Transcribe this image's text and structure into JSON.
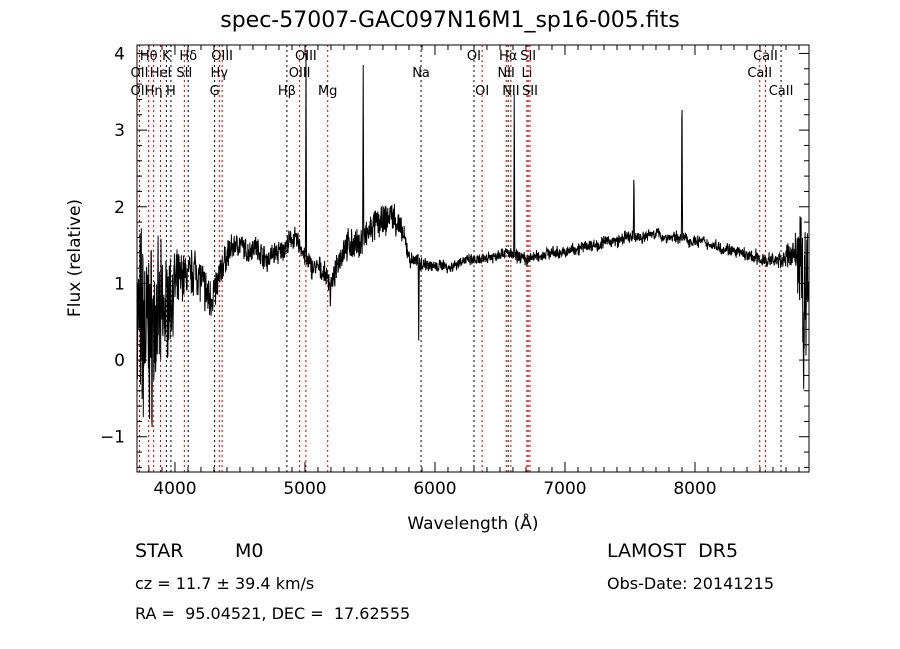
{
  "chart_data": {
    "type": "line",
    "title": "spec-57007-GAC097N16M1_sp16-005.fits",
    "xlabel": "Wavelength (Å)",
    "ylabel": "Flux (relative)",
    "xlim": [
      3708,
      8877
    ],
    "ylim": [
      -1.46,
      4.11
    ],
    "xticks": [
      4000,
      5000,
      6000,
      7000,
      8000
    ],
    "yticks": [
      -1,
      0,
      1,
      2,
      3,
      4
    ],
    "grid": false,
    "continuum": {
      "x": [
        3710,
        3760,
        3810,
        3860,
        3910,
        3960,
        4010,
        4060,
        4110,
        4160,
        4210,
        4260,
        4310,
        4360,
        4410,
        4460,
        4510,
        4560,
        4610,
        4660,
        4710,
        4760,
        4810,
        4860,
        4910,
        4960,
        5010,
        5060,
        5110,
        5160,
        5210,
        5260,
        5310,
        5360,
        5410,
        5460,
        5510,
        5560,
        5610,
        5660,
        5710,
        5760,
        5810,
        5860,
        5910,
        5960,
        6010,
        6060,
        6110,
        6160,
        6210,
        6260,
        6310,
        6360,
        6410,
        6460,
        6510,
        6560,
        6610,
        6660,
        6710,
        6760,
        6810,
        6860,
        6910,
        6960,
        7010,
        7060,
        7110,
        7160,
        7210,
        7260,
        7310,
        7360,
        7410,
        7460,
        7510,
        7560,
        7610,
        7660,
        7710,
        7760,
        7810,
        7860,
        7910,
        7960,
        8010,
        8060,
        8110,
        8160,
        8210,
        8260,
        8310,
        8360,
        8410,
        8460,
        8510,
        8560,
        8610,
        8660,
        8710,
        8760,
        8810,
        8850,
        8870
      ],
      "y": [
        0.5,
        0.4,
        0.3,
        0.5,
        0.6,
        0.8,
        1.0,
        1.1,
        1.1,
        1.2,
        1.0,
        0.8,
        0.9,
        1.2,
        1.4,
        1.5,
        1.5,
        1.4,
        1.5,
        1.4,
        1.3,
        1.4,
        1.4,
        1.5,
        1.6,
        1.5,
        1.3,
        1.2,
        1.2,
        1.1,
        1.0,
        1.3,
        1.5,
        1.5,
        1.5,
        1.6,
        1.7,
        1.8,
        1.8,
        1.9,
        1.8,
        1.6,
        1.3,
        1.3,
        1.25,
        1.25,
        1.2,
        1.25,
        1.2,
        1.25,
        1.3,
        1.3,
        1.3,
        1.3,
        1.35,
        1.35,
        1.4,
        1.4,
        1.35,
        1.35,
        1.3,
        1.35,
        1.35,
        1.4,
        1.4,
        1.4,
        1.4,
        1.45,
        1.45,
        1.5,
        1.5,
        1.5,
        1.55,
        1.55,
        1.55,
        1.6,
        1.6,
        1.6,
        1.6,
        1.65,
        1.65,
        1.6,
        1.6,
        1.6,
        1.6,
        1.55,
        1.55,
        1.55,
        1.5,
        1.5,
        1.45,
        1.45,
        1.4,
        1.4,
        1.35,
        1.35,
        1.3,
        1.3,
        1.3,
        1.3,
        1.35,
        1.4,
        1.3,
        1.0,
        0.9
      ],
      "noise_amplitude": [
        1.3,
        1.3,
        1.2,
        1.0,
        0.8,
        0.6,
        0.4,
        0.3,
        0.3,
        0.3,
        0.3,
        0.3,
        0.25,
        0.2,
        0.2,
        0.15,
        0.15,
        0.15,
        0.15,
        0.15,
        0.15,
        0.15,
        0.15,
        0.15,
        0.15,
        0.15,
        0.15,
        0.15,
        0.15,
        0.15,
        0.15,
        0.15,
        0.2,
        0.2,
        0.2,
        0.2,
        0.2,
        0.2,
        0.2,
        0.2,
        0.2,
        0.15,
        0.1,
        0.1,
        0.1,
        0.08,
        0.08,
        0.08,
        0.08,
        0.08,
        0.08,
        0.08,
        0.08,
        0.08,
        0.08,
        0.08,
        0.08,
        0.08,
        0.08,
        0.08,
        0.08,
        0.08,
        0.08,
        0.08,
        0.08,
        0.08,
        0.08,
        0.08,
        0.08,
        0.08,
        0.08,
        0.08,
        0.08,
        0.08,
        0.08,
        0.08,
        0.08,
        0.08,
        0.08,
        0.08,
        0.08,
        0.08,
        0.08,
        0.08,
        0.08,
        0.08,
        0.08,
        0.08,
        0.08,
        0.08,
        0.08,
        0.08,
        0.08,
        0.08,
        0.08,
        0.1,
        0.1,
        0.1,
        0.1,
        0.1,
        0.15,
        0.2,
        0.6,
        1.0,
        1.0
      ]
    },
    "features": [
      {
        "x": 5008,
        "y": 4.0,
        "type": "emission"
      },
      {
        "x": 5448,
        "y": 3.85,
        "type": "emission"
      },
      {
        "x": 5875,
        "y": 0.2,
        "type": "absorption"
      },
      {
        "x": 5195,
        "y": 0.7,
        "type": "absorption"
      },
      {
        "x": 6610,
        "y": 3.7,
        "type": "emission"
      },
      {
        "x": 7530,
        "y": 2.55,
        "type": "emission"
      },
      {
        "x": 7900,
        "y": 3.8,
        "type": "emission"
      },
      {
        "x": 8835,
        "y": -0.9,
        "type": "absorption"
      }
    ],
    "line_markers": [
      {
        "label": "Hθ",
        "x": 3798,
        "row": 0,
        "color": "#c00000"
      },
      {
        "label": "K",
        "x": 3934,
        "row": 0,
        "color": "#000000"
      },
      {
        "label": "Hδ",
        "x": 4102,
        "row": 0,
        "color": "#000000"
      },
      {
        "label": "OIII",
        "x": 4363,
        "row": 0,
        "color": "#c00000"
      },
      {
        "label": "OII",
        "x": 3727,
        "row": 1,
        "color": "#c00000"
      },
      {
        "label": "HeI",
        "x": 3889,
        "row": 1,
        "color": "#c00000"
      },
      {
        "label": "SII",
        "x": 4072,
        "row": 1,
        "color": "#c00000"
      },
      {
        "label": "Hγ",
        "x": 4341,
        "row": 1,
        "color": "#c00000"
      },
      {
        "label": "OII",
        "x": 3727,
        "row": 2,
        "color": "#c00000"
      },
      {
        "label": "Hη",
        "x": 3836,
        "row": 2,
        "color": "#c00000"
      },
      {
        "label": "H",
        "x": 3969,
        "row": 2,
        "color": "#000000"
      },
      {
        "label": "G",
        "x": 4305,
        "row": 2,
        "color": "#000000"
      },
      {
        "label": "OIII",
        "x": 5007,
        "row": 0,
        "color": "#c00000"
      },
      {
        "label": "OIII",
        "x": 4959,
        "row": 1,
        "color": "#c00000"
      },
      {
        "label": "Hβ",
        "x": 4861,
        "row": 2,
        "color": "#000000"
      },
      {
        "label": "Mg",
        "x": 5175,
        "row": 2,
        "color": "#c00000"
      },
      {
        "label": "Na",
        "x": 5893,
        "row": 1,
        "color": "#000000"
      },
      {
        "label": "OI",
        "x": 6300,
        "row": 0,
        "color": "#000000"
      },
      {
        "label": "OI",
        "x": 6363,
        "row": 2,
        "color": "#c00000"
      },
      {
        "label": "Hα",
        "x": 6563,
        "row": 0,
        "color": "#000000"
      },
      {
        "label": "SII",
        "x": 6717,
        "row": 0,
        "color": "#c00000"
      },
      {
        "label": "NII",
        "x": 6548,
        "row": 1,
        "color": "#c00000"
      },
      {
        "label": "Li",
        "x": 6707,
        "row": 1,
        "color": "#c00000"
      },
      {
        "label": "NII",
        "x": 6584,
        "row": 2,
        "color": "#c00000"
      },
      {
        "label": "SII",
        "x": 6731,
        "row": 2,
        "color": "#c00000"
      },
      {
        "label": "CaII",
        "x": 8542,
        "row": 0,
        "color": "#c00000"
      },
      {
        "label": "CaII",
        "x": 8498,
        "row": 1,
        "color": "#c00000"
      },
      {
        "label": "CaII",
        "x": 8662,
        "row": 2,
        "color": "#000000"
      }
    ]
  },
  "info": {
    "object_class": "STAR",
    "subclass": "M0",
    "survey": "LAMOST  DR5",
    "redshift": "cz = 11.7 ± 39.4 km/s",
    "obs_date": "Obs-Date: 20141215",
    "coords": "RA =  95.04521, DEC =  17.62555"
  }
}
